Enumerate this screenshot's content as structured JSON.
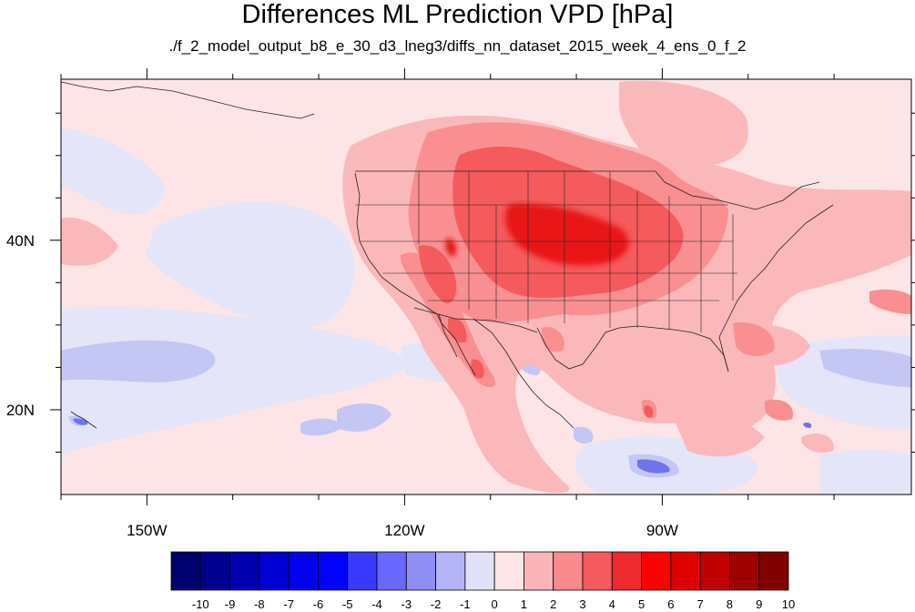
{
  "title": "Differences ML Prediction VPD [hPa]",
  "subtitle": "./f_2_model_output_b8_e_30_d3_lneg3/diffs_nn_dataset_2015_week_4_ens_0_f_2",
  "map": {
    "lon_range": [
      -160,
      -61
    ],
    "lat_range": [
      10,
      59
    ],
    "x_ticks": [
      {
        "lon": -150,
        "label": "150W"
      },
      {
        "lon": -120,
        "label": "120W"
      },
      {
        "lon": -90,
        "label": "90W"
      }
    ],
    "y_ticks": [
      {
        "lat": 40,
        "label": "40N"
      },
      {
        "lat": 20,
        "label": "20N"
      }
    ],
    "colors": {
      "background": "#fde5e7",
      "positive_light": "#fbb8ba",
      "positive_mid": "#f98f91",
      "positive_strong": "#f55a5c",
      "positive_max": "#e81418",
      "negative_light": "#e4e5f9",
      "negative_mid": "#c4c6f4",
      "negative_strong": "#6f73ee"
    }
  },
  "colorbar": {
    "labels": [
      "-10",
      "-9",
      "-8",
      "-7",
      "-6",
      "-5",
      "-4",
      "-3",
      "-2",
      "-1",
      "0",
      "1",
      "2",
      "3",
      "4",
      "5",
      "6",
      "7",
      "8",
      "9",
      "10"
    ],
    "colors": [
      "#00006e",
      "#00008e",
      "#0000b0",
      "#0000d2",
      "#0000ee",
      "#0000ff",
      "#3a3aff",
      "#6868ff",
      "#8e8ef6",
      "#b4b4f6",
      "#e2e2f6",
      "#fde4e6",
      "#fbb5b8",
      "#f98a8e",
      "#f55a5e",
      "#ee2a2e",
      "#ff0000",
      "#de0000",
      "#c00000",
      "#a00000",
      "#800000"
    ]
  }
}
